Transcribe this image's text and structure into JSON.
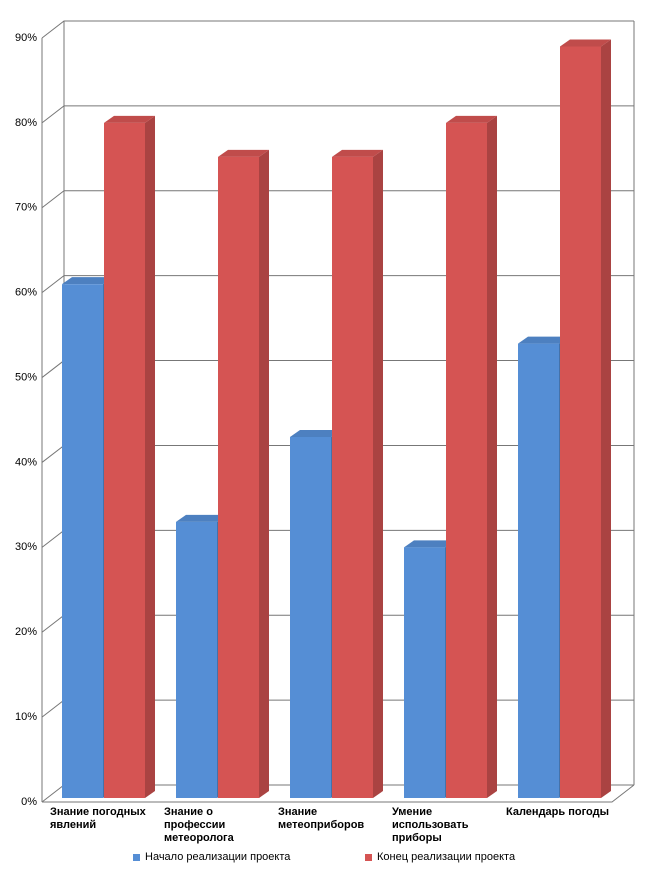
{
  "chart_data": {
    "type": "bar3d",
    "categories": [
      "Знание погодных явлений",
      "Знание о профессии метеоролога",
      "Знание метеоприборов",
      "Умение использовать приборы",
      "Календарь погоды"
    ],
    "series": [
      {
        "name": "Начало реализации проекта",
        "color": "#558ed5",
        "values": [
          61,
          33,
          43,
          30,
          54
        ]
      },
      {
        "name": "Конец реализации проекта",
        "color": "#d55453",
        "values": [
          80,
          76,
          76,
          80,
          89
        ]
      }
    ],
    "ylim": [
      0,
      90
    ],
    "yticks": [
      {
        "value": 0,
        "label": "0%"
      },
      {
        "value": 10,
        "label": "10%"
      },
      {
        "value": 20,
        "label": "20%"
      },
      {
        "value": 30,
        "label": "30%"
      },
      {
        "value": 40,
        "label": "40%"
      },
      {
        "value": 50,
        "label": "50%"
      },
      {
        "value": 60,
        "label": "60%"
      },
      {
        "value": 70,
        "label": "70%"
      },
      {
        "value": 80,
        "label": "80%"
      },
      {
        "value": 90,
        "label": "90%"
      }
    ],
    "grid": true
  }
}
